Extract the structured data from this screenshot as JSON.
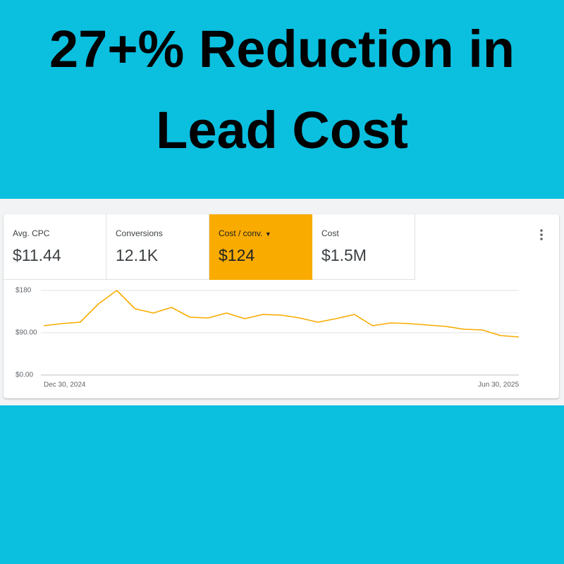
{
  "header": {
    "title": "27+% Reduction in Lead Cost"
  },
  "metrics": [
    {
      "label": "Avg. CPC",
      "value": "$11.44"
    },
    {
      "label": "Conversions",
      "value": "12.1K"
    },
    {
      "label": "Cost / conv.",
      "value": "$124"
    },
    {
      "label": "Cost",
      "value": "$1.5M"
    }
  ],
  "chart_data": {
    "type": "line",
    "categories": [
      "Dec 30, 2024",
      null,
      null,
      null,
      null,
      null,
      null,
      null,
      null,
      null,
      null,
      null,
      null,
      null,
      null,
      null,
      null,
      null,
      null,
      null,
      null,
      null,
      null,
      null,
      null,
      null,
      "Jun 30, 2025"
    ],
    "values": [
      105,
      109.5,
      112.5,
      151.5,
      180,
      141,
      132,
      144,
      123,
      121.5,
      132,
      120,
      129,
      127.5,
      121.5,
      112.5,
      120,
      129,
      105,
      111,
      109.5,
      106.5,
      103.5,
      97.5,
      96,
      84,
      81
    ],
    "color": "#f9ab00",
    "ylim": [
      0,
      190
    ],
    "yticks": [
      {
        "value": 0,
        "label": "$0.00"
      },
      {
        "value": 90,
        "label": "$90.00"
      },
      {
        "value": 180,
        "label": "$180"
      }
    ],
    "grid": true
  }
}
